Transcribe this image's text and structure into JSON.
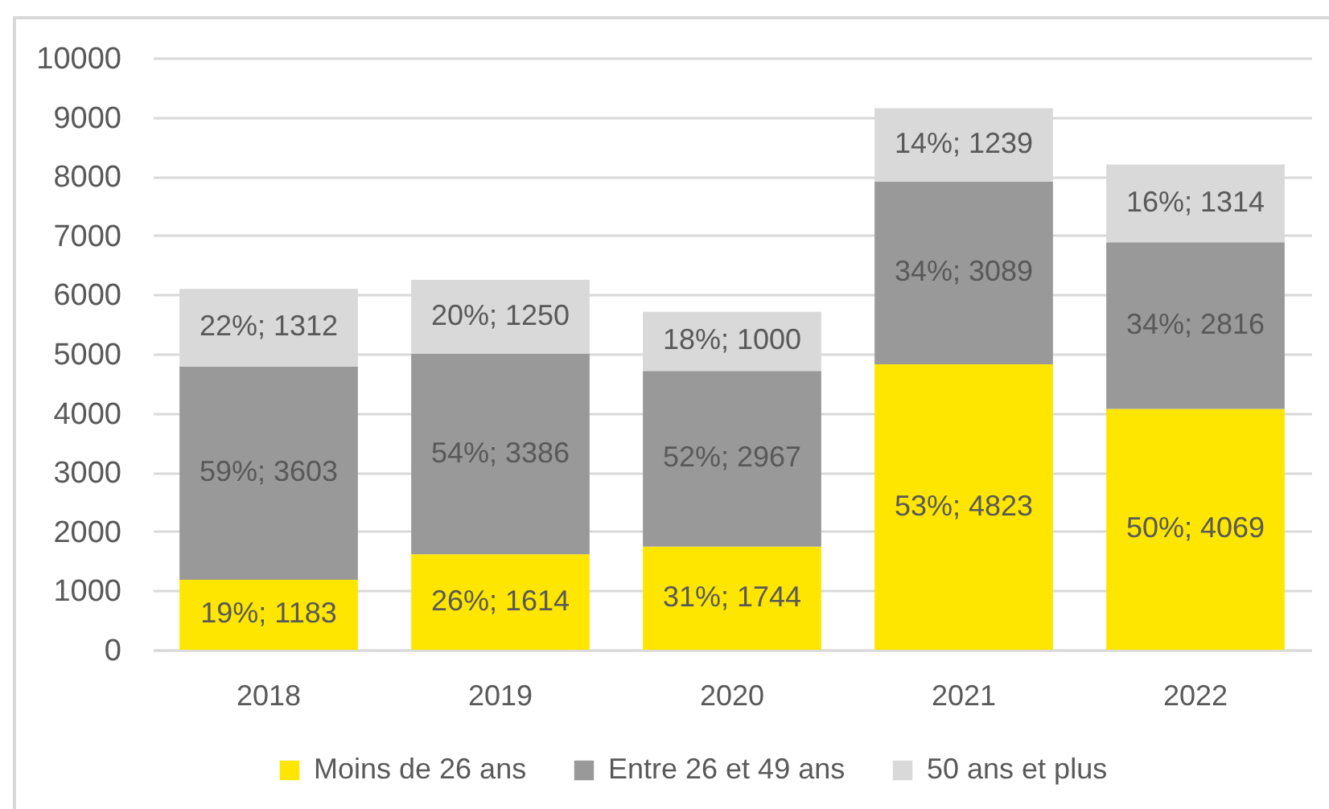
{
  "chart_data": {
    "type": "bar",
    "stacked": true,
    "categories": [
      "2018",
      "2019",
      "2020",
      "2021",
      "2022"
    ],
    "series": [
      {
        "name": "Moins de 26 ans",
        "color": "#ffe600",
        "values": [
          1183,
          1614,
          1744,
          4823,
          4069
        ],
        "value_labels": [
          "19%; 1183",
          "26%; 1614",
          "31%; 1744",
          "53%; 4823",
          "50%; 4069"
        ]
      },
      {
        "name": "Entre 26 et 49 ans",
        "color": "#999999",
        "values": [
          3603,
          3386,
          2967,
          3089,
          2816
        ],
        "value_labels": [
          "59%; 3603",
          "54%; 3386",
          "52%; 2967",
          "34%; 3089",
          "34%; 2816"
        ]
      },
      {
        "name": "50 ans et plus",
        "color": "#d9d9d9",
        "values": [
          1312,
          1250,
          1000,
          1239,
          1314
        ],
        "value_labels": [
          "22%; 1312",
          "20%; 1250",
          "18%; 1000",
          "14%; 1239",
          "16%; 1314"
        ]
      }
    ],
    "ylim": [
      0,
      10000
    ],
    "yticks": [
      0,
      1000,
      2000,
      3000,
      4000,
      5000,
      6000,
      7000,
      8000,
      9000,
      10000
    ],
    "grid": "y",
    "legend": "bottom"
  }
}
